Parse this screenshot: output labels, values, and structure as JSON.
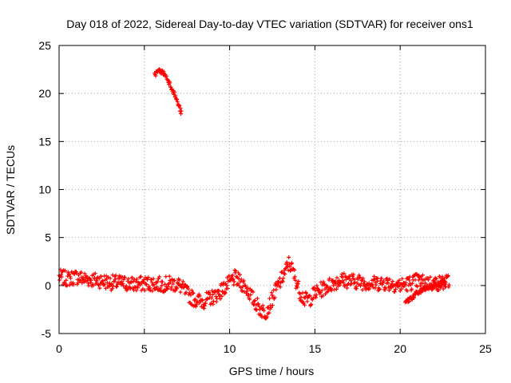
{
  "chart_data": {
    "type": "scatter",
    "title": "Day 018 of 2022, Sidereal Day-to-day VTEC variation (SDTVAR) for receiver ons1",
    "xlabel": "GPS time / hours",
    "ylabel": "SDTVAR / TECUs",
    "xlim": [
      0,
      25
    ],
    "ylim": [
      -5,
      25
    ],
    "xticks": [
      0,
      5,
      10,
      15,
      20,
      25
    ],
    "yticks": [
      -5,
      0,
      5,
      10,
      15,
      20,
      25
    ],
    "grid": true,
    "marker": "+",
    "series": [
      {
        "name": "SDTVAR",
        "color": "#ff0000",
        "bands": [
          {
            "x": [
              0,
              0.5,
              1,
              1.5,
              2,
              2.5,
              3,
              3.5,
              4,
              4.5,
              5,
              5.5,
              6,
              6.5,
              7,
              7.3,
              7.6,
              7.9,
              8.2,
              8.5,
              8.8,
              9.2,
              9.6,
              10,
              10.3,
              10.6,
              11,
              11.4,
              11.8,
              12.1,
              12.4,
              12.7,
              13,
              13.3,
              13.5,
              13.8,
              14.1,
              14.4,
              14.7,
              15,
              15.5,
              16,
              16.5,
              17,
              17.5,
              18,
              18.5,
              19,
              19.5,
              20,
              20.5,
              21,
              21.5,
              22,
              22.5,
              22.9
            ],
            "y": [
              0.9,
              0.7,
              0.9,
              0.7,
              0.6,
              0.5,
              0.3,
              0.3,
              0.2,
              0.1,
              0.2,
              0.2,
              0.1,
              0.2,
              0.1,
              -0.4,
              -1.0,
              -1.4,
              -1.6,
              -1.6,
              -1.4,
              -1.0,
              -0.4,
              0.3,
              0.8,
              0.4,
              -0.3,
              -1.5,
              -2.5,
              -2.8,
              -1.8,
              -0.5,
              0.5,
              1.6,
              2.4,
              1.0,
              -0.6,
              -1.5,
              -1.4,
              -0.8,
              -0.3,
              0.2,
              0.6,
              0.5,
              0.4,
              0.3,
              0.2,
              0.3,
              0.2,
              0.0,
              0.2,
              0.5,
              0.3,
              0.2,
              0.3,
              0.4
            ],
            "spread": 0.8
          },
          {
            "x": [
              5.6,
              5.9,
              6.2,
              6.5,
              6.8,
              7.0,
              7.2
            ],
            "y": [
              22.0,
              22.4,
              22.0,
              21.0,
              19.8,
              18.8,
              17.8
            ],
            "spread": 0.25
          },
          {
            "x": [
              20.3,
              20.7,
              21.1,
              21.5,
              21.9,
              22.3,
              22.7
            ],
            "y": [
              -1.8,
              -1.2,
              -0.7,
              -0.3,
              0.0,
              0.2,
              0.4
            ],
            "spread": 0.3
          }
        ]
      }
    ]
  }
}
